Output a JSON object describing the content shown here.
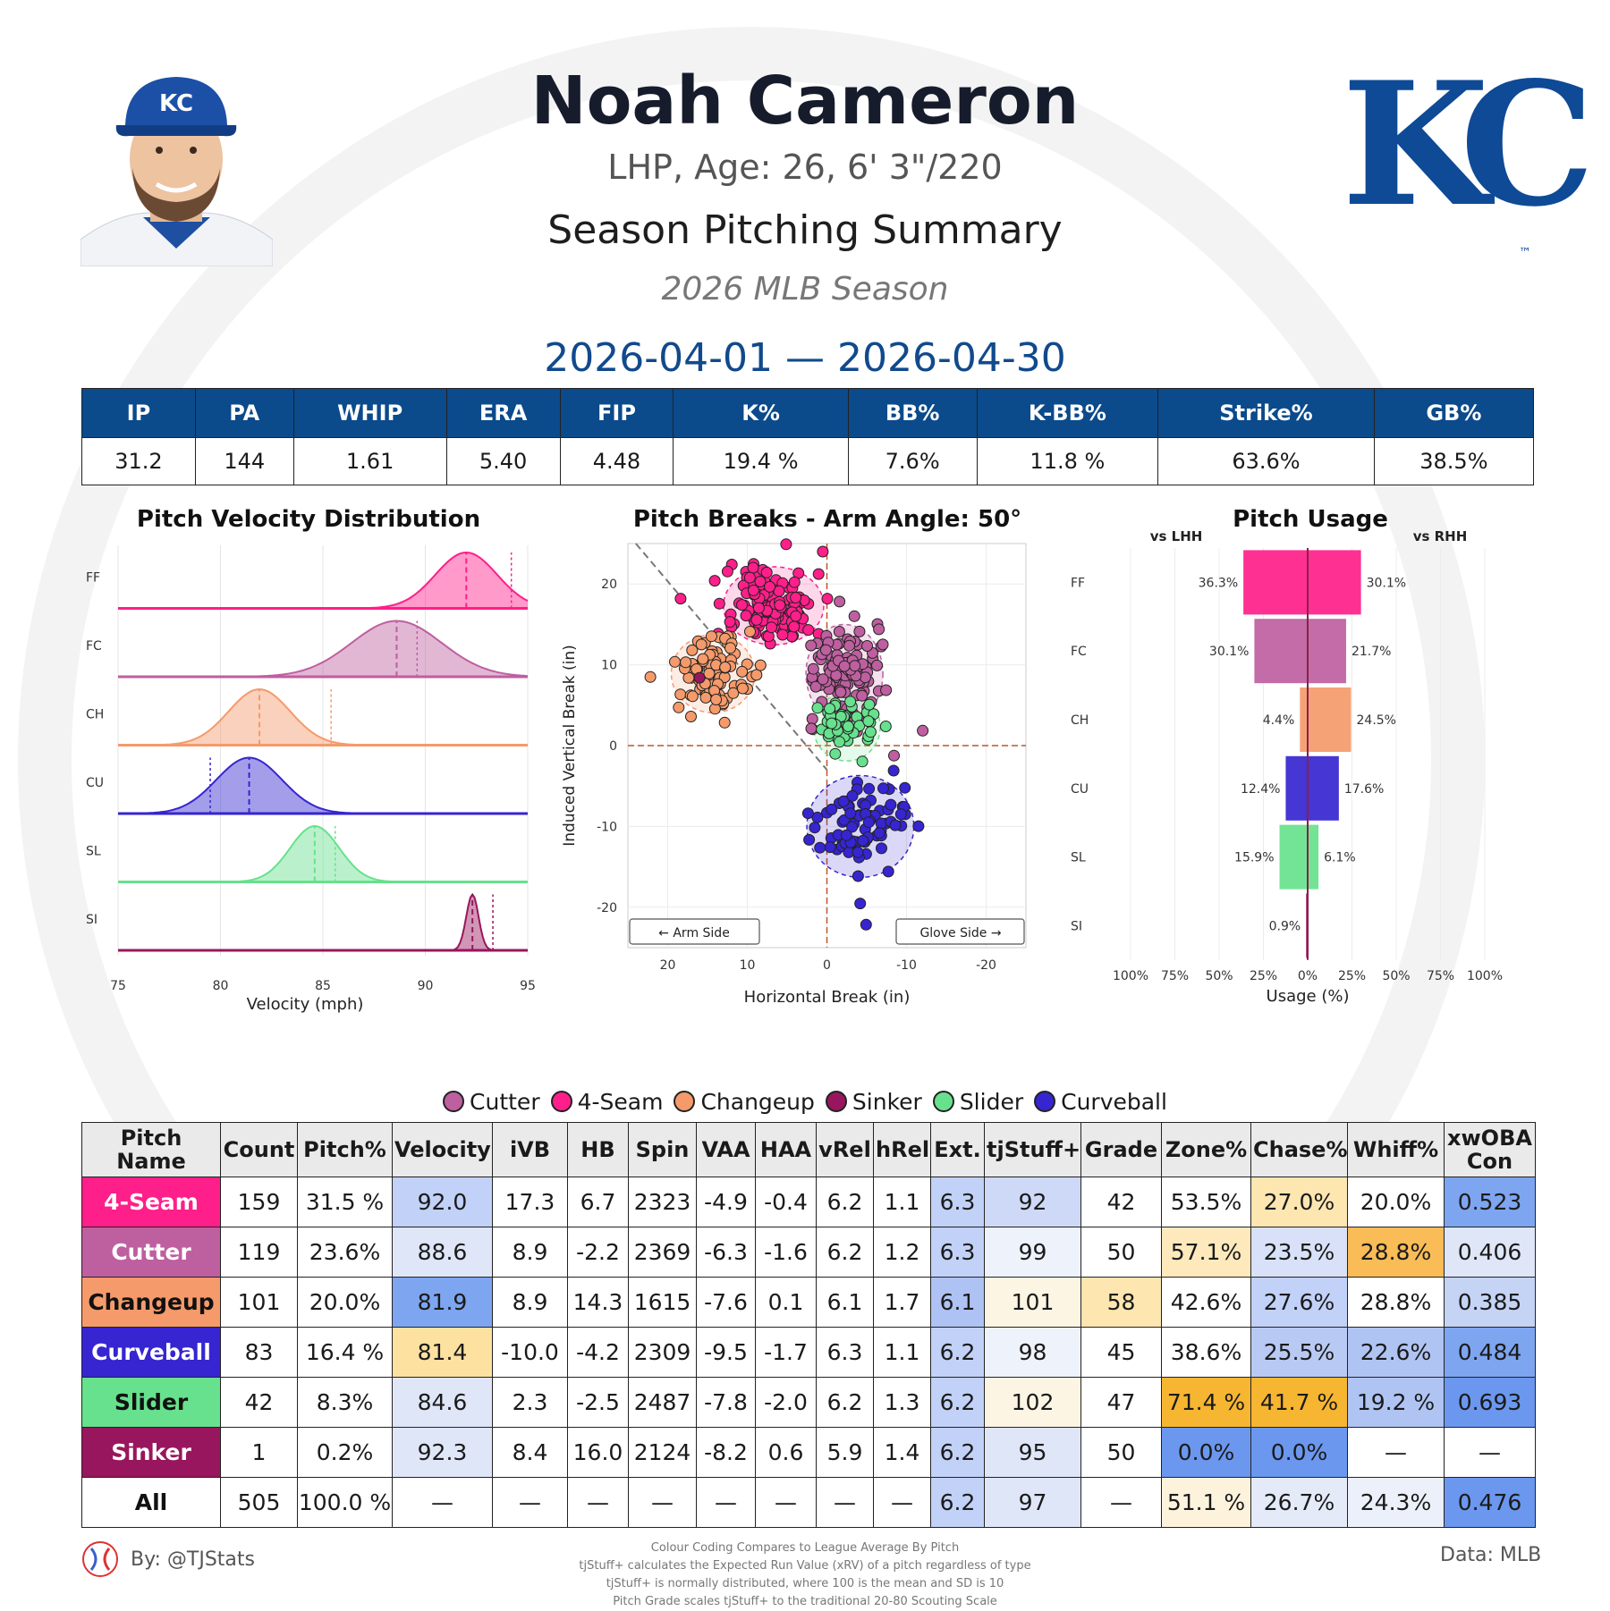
{
  "header": {
    "name": "Noah Cameron",
    "bio": "LHP, Age: 26, 6' 3\"/220",
    "summary_title": "Season Pitching Summary",
    "season": "2026 MLB Season",
    "date_range": "2026-04-01 — 2026-04-30",
    "team_logo_text": "KC",
    "team_logo_mark": "™"
  },
  "season_stats": {
    "headers": [
      "IP",
      "PA",
      "WHIP",
      "ERA",
      "FIP",
      "K%",
      "BB%",
      "K-BB%",
      "Strike%",
      "GB%"
    ],
    "values": [
      "31.2",
      "144",
      "1.61",
      "5.40",
      "4.48",
      "19.4 %",
      "7.6%",
      "11.8 %",
      "63.6%",
      "38.5%"
    ]
  },
  "panels": {
    "velocity_title": "Pitch Velocity Distribution",
    "breaks_title": "Pitch Breaks - Arm Angle: 50°",
    "usage_title": "Pitch Usage"
  },
  "chart_data": [
    {
      "type": "area",
      "title": "Pitch Velocity Distribution",
      "xlabel": "Velocity (mph)",
      "xlim": [
        75,
        95
      ],
      "x_ticks": [
        "75",
        "80",
        "85",
        "90",
        "95"
      ],
      "categories": [
        "FF",
        "FC",
        "CH",
        "CU",
        "SL",
        "SI"
      ],
      "series": [
        {
          "name": "FF",
          "color": "#fe1f8a",
          "mean": 92.0,
          "sd": 1.5,
          "league_avg": 94.2
        },
        {
          "name": "FC",
          "color": "#be5fa0",
          "mean": 88.6,
          "sd": 2.2,
          "league_avg": 89.6
        },
        {
          "name": "CH",
          "color": "#f59a6b",
          "mean": 81.9,
          "sd": 1.5,
          "league_avg": 85.4
        },
        {
          "name": "CU",
          "color": "#3625d0",
          "mean": 81.4,
          "sd": 1.6,
          "league_avg": 79.5
        },
        {
          "name": "SL",
          "color": "#67e18d",
          "mean": 84.6,
          "sd": 1.2,
          "league_avg": 85.6
        },
        {
          "name": "SI",
          "color": "#98165d",
          "mean": 92.3,
          "sd": 0.3,
          "league_avg": 93.3
        }
      ]
    },
    {
      "type": "scatter",
      "title": "Pitch Breaks - Arm Angle: 50°",
      "xlabel": "Horizontal Break (in)",
      "ylabel": "Induced Vertical Break (in)",
      "xlim": [
        25,
        -25
      ],
      "ylim": [
        -25,
        25
      ],
      "x_ticks": [
        "20",
        "10",
        "0",
        "-10",
        "-20"
      ],
      "y_ticks": [
        "20",
        "10",
        "0",
        "-10",
        "-20"
      ],
      "arm_side_label": "← Arm Side",
      "glove_side_label": "Glove Side →",
      "series": [
        {
          "name": "4-Seam",
          "color": "#fe1f8a",
          "count": 159,
          "center": [
            6.7,
            17.3
          ],
          "spread": [
            3.0,
            2.3
          ]
        },
        {
          "name": "Cutter",
          "color": "#be5fa0",
          "count": 119,
          "center": [
            -2.2,
            8.9
          ],
          "spread": [
            2.3,
            2.9
          ]
        },
        {
          "name": "Changeup",
          "color": "#f59a6b",
          "count": 101,
          "center": [
            14.3,
            8.9
          ],
          "spread": [
            2.5,
            2.3
          ]
        },
        {
          "name": "Curveball",
          "color": "#3625d0",
          "count": 83,
          "center": [
            -4.2,
            -10.0
          ],
          "spread": [
            3.2,
            3.0
          ]
        },
        {
          "name": "Slider",
          "color": "#67e18d",
          "count": 42,
          "center": [
            -2.5,
            2.3
          ],
          "spread": [
            2.0,
            2.0
          ]
        },
        {
          "name": "Sinker",
          "color": "#98165d",
          "count": 1,
          "center": [
            16.0,
            8.4
          ],
          "spread": [
            0,
            0
          ]
        }
      ]
    },
    {
      "type": "bar",
      "title": "Pitch Usage",
      "xlabel": "Usage (%)",
      "left_label": "vs LHH",
      "right_label": "vs RHH",
      "x_ticks": [
        "100%",
        "75%",
        "50%",
        "25%",
        "0%",
        "25%",
        "50%",
        "75%",
        "100%"
      ],
      "categories": [
        "FF",
        "FC",
        "CH",
        "CU",
        "SL",
        "SI"
      ],
      "colors": [
        "#fe1f8a",
        "#be5fa0",
        "#f59a6b",
        "#3625d0",
        "#67e18d",
        "#98165d"
      ],
      "series": [
        {
          "name": "vs LHH",
          "values": [
            36.3,
            30.1,
            4.4,
            12.4,
            15.9,
            0.9
          ]
        },
        {
          "name": "vs RHH",
          "values": [
            30.1,
            21.7,
            24.5,
            17.6,
            6.1,
            null
          ]
        }
      ],
      "labels_lhh": [
        "36.3%",
        "30.1%",
        "4.4%",
        "12.4%",
        "15.9%",
        "0.9%"
      ],
      "labels_rhh": [
        "30.1%",
        "21.7%",
        "24.5%",
        "17.6%",
        "6.1%",
        ""
      ]
    }
  ],
  "legend": [
    {
      "name": "Cutter",
      "color": "#be5fa0"
    },
    {
      "name": "4-Seam",
      "color": "#fe1f8a"
    },
    {
      "name": "Changeup",
      "color": "#f59a6b"
    },
    {
      "name": "Sinker",
      "color": "#98165d"
    },
    {
      "name": "Slider",
      "color": "#67e18d"
    },
    {
      "name": "Curveball",
      "color": "#3625d0"
    }
  ],
  "pitch_table": {
    "headers": [
      "Pitch Name",
      "Count",
      "Pitch%",
      "Velocity",
      "iVB",
      "HB",
      "Spin",
      "VAA",
      "HAA",
      "vRel",
      "hRel",
      "Ext.",
      "tjStuff+",
      "Grade",
      "Zone%",
      "Chase%",
      "Whiff%",
      "xwOBA Con"
    ],
    "rows": [
      {
        "name": "4-Seam",
        "color": "#fe1f8a",
        "text_color": "#ffffff",
        "cells": [
          "159",
          "31.5 %",
          "92.0",
          "17.3",
          "6.7",
          "2323",
          "-4.9",
          "-0.4",
          "6.2",
          "1.1",
          "6.3",
          "92",
          "42",
          "53.5%",
          "27.0%",
          "20.0%",
          "0.523"
        ]
      },
      {
        "name": "Cutter",
        "color": "#be5fa0",
        "text_color": "#ffffff",
        "cells": [
          "119",
          "23.6%",
          "88.6",
          "8.9",
          "-2.2",
          "2369",
          "-6.3",
          "-1.6",
          "6.2",
          "1.2",
          "6.3",
          "99",
          "50",
          "57.1%",
          "23.5%",
          "28.8%",
          "0.406"
        ]
      },
      {
        "name": "Changeup",
        "color": "#f59a6b",
        "text_color": "#111111",
        "cells": [
          "101",
          "20.0%",
          "81.9",
          "8.9",
          "14.3",
          "1615",
          "-7.6",
          "0.1",
          "6.1",
          "1.7",
          "6.1",
          "101",
          "58",
          "42.6%",
          "27.6%",
          "28.8%",
          "0.385"
        ]
      },
      {
        "name": "Curveball",
        "color": "#3625d0",
        "text_color": "#ffffff",
        "cells": [
          "83",
          "16.4 %",
          "81.4",
          "-10.0",
          "-4.2",
          "2309",
          "-9.5",
          "-1.7",
          "6.3",
          "1.1",
          "6.2",
          "98",
          "45",
          "38.6%",
          "25.5%",
          "22.6%",
          "0.484"
        ]
      },
      {
        "name": "Slider",
        "color": "#67e18d",
        "text_color": "#111111",
        "cells": [
          "42",
          "8.3%",
          "84.6",
          "2.3",
          "-2.5",
          "2487",
          "-7.8",
          "-2.0",
          "6.2",
          "1.3",
          "6.2",
          "102",
          "47",
          "71.4 %",
          "41.7 %",
          "19.2 %",
          "0.693"
        ]
      },
      {
        "name": "Sinker",
        "color": "#98165d",
        "text_color": "#ffffff",
        "cells": [
          "1",
          "0.2%",
          "92.3",
          "8.4",
          "16.0",
          "2124",
          "-8.2",
          "0.6",
          "5.9",
          "1.4",
          "6.2",
          "95",
          "50",
          "0.0%",
          "0.0%",
          "—",
          "—"
        ]
      },
      {
        "name": "All",
        "color": "#ffffff",
        "text_color": "#111111",
        "cells": [
          "505",
          "100.0 %",
          "—",
          "—",
          "—",
          "—",
          "—",
          "—",
          "—",
          "—",
          "6.2",
          "97",
          "—",
          "51.1 %",
          "26.7%",
          "24.3%",
          "0.476"
        ]
      }
    ],
    "cell_colors": [
      [
        "",
        "",
        "#c2d1f7",
        "",
        "",
        "",
        "",
        "",
        "",
        "",
        "#c2d1f7",
        "#cdd9f6",
        "",
        "",
        "#fde6b0",
        "",
        "#7ea5f0"
      ],
      [
        "",
        "",
        "#dfe6f8",
        "",
        "",
        "",
        "",
        "",
        "",
        "",
        "#c2d1f7",
        "#eef2fb",
        "",
        "#fde9bb",
        "#d8e1f7",
        "#f9bc57",
        "#dfe6f8"
      ],
      [
        "",
        "",
        "#7ea5f0",
        "",
        "",
        "",
        "",
        "",
        "",
        "",
        "#aec3f3",
        "#fdf5e3",
        "#fde6b0",
        "",
        "#c2d1f7",
        "",
        "#c5d3f5"
      ],
      [
        "",
        "",
        "#fde1a0",
        "",
        "",
        "",
        "",
        "",
        "",
        "",
        "#c2d1f7",
        "#eef2fb",
        "",
        "",
        "#b8caf4",
        "#b0c4f3",
        "#7ea5f0"
      ],
      [
        "",
        "",
        "#dfe6f8",
        "",
        "",
        "",
        "",
        "",
        "",
        "",
        "#c2d1f7",
        "#fdf5e3",
        "",
        "#f7b631",
        "#f7b631",
        "#b0c4f3",
        "#6b97ee"
      ],
      [
        "",
        "",
        "#dfe6f8",
        "",
        "",
        "",
        "",
        "",
        "",
        "",
        "#c2d1f7",
        "#dfe6f8",
        "",
        "#6b97ee",
        "#6b97ee",
        "",
        ""
      ],
      [
        "",
        "",
        "",
        "",
        "",
        "",
        "",
        "",
        "",
        "",
        "#c2d1f7",
        "#dfe6f8",
        "",
        "#fdf3dd",
        "#e4eaf8",
        "#ecf0fa",
        "#6b97ee"
      ]
    ]
  },
  "footer": {
    "by": "By: @TJStats",
    "data_source": "Data: MLB",
    "notes": [
      "Colour Coding Compares to League Average By Pitch",
      "tjStuff+ calculates the Expected Run Value (xRV) of a pitch regardless of type",
      "tjStuff+ is normally distributed, where 100 is the mean and SD is 10",
      "Pitch Grade scales tjStuff+ to the traditional 20-80 Scouting Scale"
    ]
  }
}
